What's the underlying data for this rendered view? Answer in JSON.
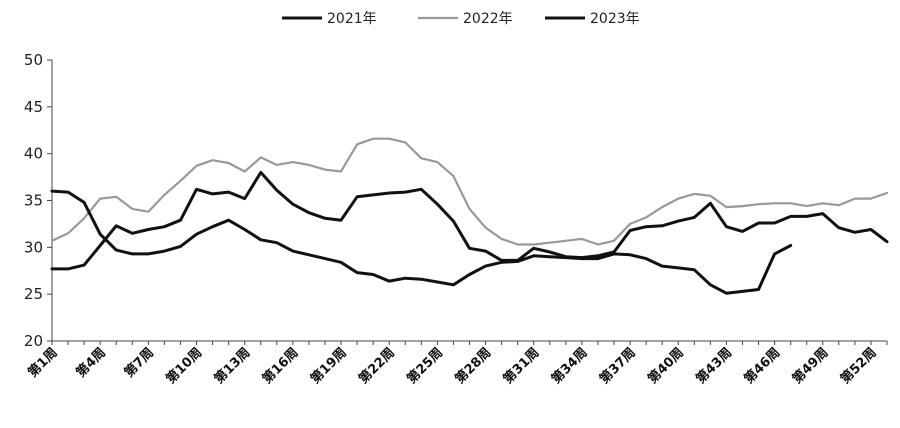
{
  "chart_data": {
    "type": "line",
    "title": "",
    "xlabel": "",
    "ylabel": "",
    "ylim": [
      20,
      50
    ],
    "yticks": [
      20,
      25,
      30,
      35,
      40,
      45,
      50
    ],
    "x_tick_labels": [
      "第1周",
      "第4周",
      "第7周",
      "第10周",
      "第13周",
      "第16周",
      "第19周",
      "第22周",
      "第25周",
      "第28周",
      "第31周",
      "第34周",
      "第37周",
      "第40周",
      "第43周",
      "第46周",
      "第49周",
      "第52周"
    ],
    "num_weeks": 53,
    "grid": false,
    "legend_position": "top-center",
    "series": [
      {
        "name": "2021年",
        "color": "#111111",
        "values": [
          27.7,
          27.7,
          28.1,
          30.2,
          32.3,
          31.5,
          31.9,
          32.2,
          32.9,
          36.2,
          35.7,
          35.9,
          35.2,
          38.0,
          36.1,
          34.6,
          33.7,
          33.1,
          32.9,
          35.4,
          35.6,
          35.8,
          35.9,
          36.2,
          34.6,
          32.8,
          29.9,
          29.6,
          28.6,
          28.6,
          29.9,
          29.5,
          29.0,
          28.9,
          29.1,
          29.5,
          31.8,
          32.2,
          32.3,
          32.8,
          33.2,
          34.7,
          32.2,
          31.7,
          32.6,
          32.6,
          33.3,
          33.3,
          33.6,
          32.1,
          31.6,
          31.9,
          30.6
        ]
      },
      {
        "name": "2022年",
        "color": "#999999",
        "values": [
          30.7,
          31.5,
          33.1,
          35.2,
          35.4,
          34.1,
          33.8,
          35.6,
          37.1,
          38.7,
          39.3,
          39.0,
          38.1,
          39.6,
          38.8,
          39.1,
          38.8,
          38.3,
          38.1,
          41.0,
          41.6,
          41.6,
          41.2,
          39.5,
          39.1,
          37.6,
          34.1,
          32.1,
          30.9,
          30.3,
          30.3,
          30.5,
          30.7,
          30.9,
          30.3,
          30.7,
          32.5,
          33.2,
          34.3,
          35.2,
          35.7,
          35.5,
          34.3,
          34.4,
          34.6,
          34.7,
          34.7,
          34.4,
          34.7,
          34.5,
          35.2,
          35.2,
          35.8
        ]
      },
      {
        "name": "2023年",
        "color": "#111111",
        "values": [
          36.0,
          35.9,
          34.8,
          31.4,
          29.7,
          29.3,
          29.3,
          29.6,
          30.1,
          31.4,
          32.2,
          32.9,
          31.9,
          30.8,
          30.5,
          29.6,
          29.2,
          28.8,
          28.4,
          27.3,
          27.1,
          26.4,
          26.7,
          26.6,
          26.3,
          26.0,
          27.1,
          28.0,
          28.4,
          28.5,
          29.1,
          29.0,
          28.9,
          28.8,
          28.8,
          29.3,
          29.2,
          28.8,
          28.0,
          27.8,
          27.6,
          26.0,
          25.1,
          25.3,
          25.5,
          29.3,
          30.2
        ]
      }
    ]
  }
}
